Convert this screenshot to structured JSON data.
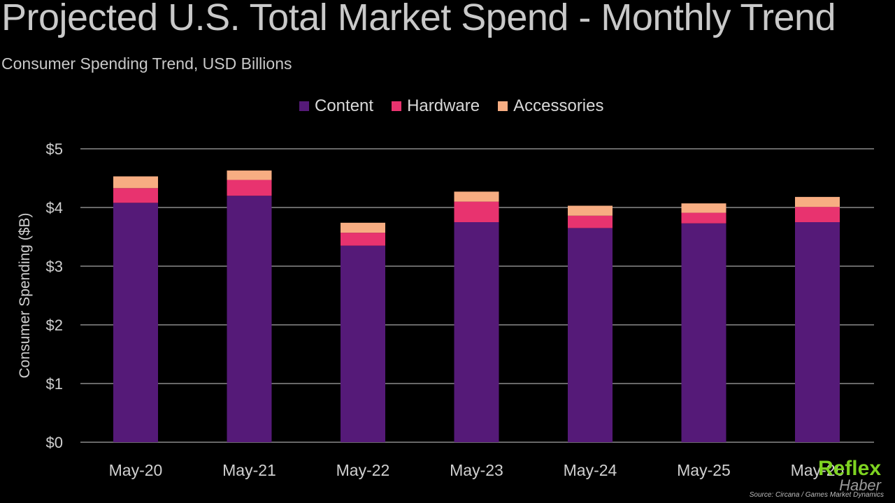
{
  "title": "Projected U.S. Total Market Spend - Monthly Trend",
  "subtitle": "Consumer Spending Trend, USD Billions",
  "source": "Source: Circana / Games Market Dynamics",
  "watermark": {
    "brand": "Reflex",
    "sub": "Haber"
  },
  "colors": {
    "content": "#551a78",
    "hardware": "#e8336f",
    "accessories": "#f7ad82",
    "grid": "#8a8a8a",
    "background": "#000000"
  },
  "chart_data": {
    "type": "bar",
    "stacked": true,
    "categories": [
      "May-20",
      "May-21",
      "May-22",
      "May-23",
      "May-24",
      "May-25",
      "May-26"
    ],
    "series": [
      {
        "name": "Content",
        "values": [
          4.08,
          4.2,
          3.35,
          3.75,
          3.65,
          3.73,
          3.75
        ]
      },
      {
        "name": "Hardware",
        "values": [
          0.25,
          0.27,
          0.22,
          0.35,
          0.21,
          0.18,
          0.26
        ]
      },
      {
        "name": "Accessories",
        "values": [
          0.2,
          0.16,
          0.17,
          0.17,
          0.17,
          0.16,
          0.17
        ]
      }
    ],
    "ylabel": "Consumer Spending ($B)",
    "xlabel": "",
    "ylim": [
      0,
      5
    ],
    "yticks": [
      "$0",
      "$1",
      "$2",
      "$3",
      "$4",
      "$5"
    ],
    "grid": true,
    "legend_position": "top-center"
  }
}
